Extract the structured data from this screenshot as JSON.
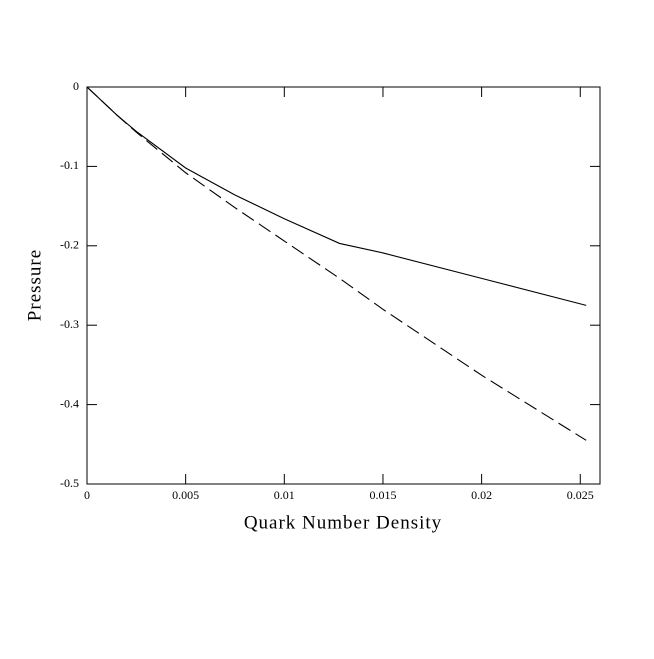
{
  "chart_data": {
    "type": "line",
    "xlabel": "Quark Number Density",
    "ylabel": "Pressure",
    "x": [
      0,
      0.0015,
      0.0025,
      0.005,
      0.0075,
      0.01,
      0.0128,
      0.015,
      0.02,
      0.0253
    ],
    "series": [
      {
        "color": "#000000",
        "dashed": false,
        "values": [
          0,
          -0.035,
          -0.056,
          -0.102,
          -0.136,
          -0.166,
          -0.197,
          -0.209,
          -0.241,
          -0.275
        ]
      },
      {
        "color": "#000000",
        "dashed": true,
        "values": [
          0,
          -0.035,
          -0.057,
          -0.108,
          -0.152,
          -0.194,
          -0.241,
          -0.28,
          -0.363,
          -0.445
        ]
      }
    ],
    "xlim": [
      0,
      0.026
    ],
    "ylim": [
      -0.5,
      0
    ],
    "xticks": [
      0,
      0.005,
      0.01,
      0.015,
      0.02,
      0.025
    ],
    "yticks": [
      -0.5,
      -0.4,
      -0.3,
      -0.2,
      -0.1,
      0
    ],
    "grid": false
  }
}
